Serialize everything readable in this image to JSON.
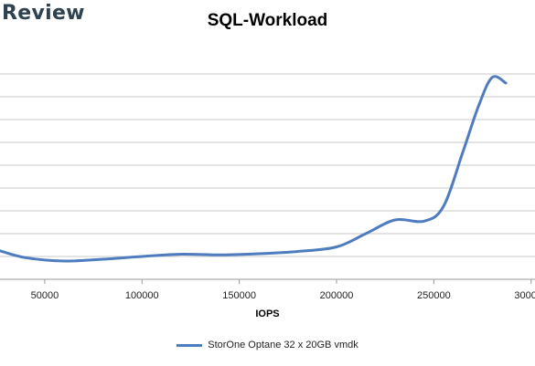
{
  "brand": {
    "text": "Review",
    "color": "#2f4250"
  },
  "colors": {
    "series": "#4f7cbf",
    "grid": "#c8c8c8",
    "axis": "#9a9a9a"
  },
  "chart_data": {
    "type": "line",
    "title": "SQL-Workload",
    "xlabel": "IOPS",
    "ylabel": "",
    "xlim": [
      27000,
      302000
    ],
    "ylim": [
      0,
      10
    ],
    "xticks": [
      {
        "value": 50000,
        "label": "50000"
      },
      {
        "value": 100000,
        "label": "100000"
      },
      {
        "value": 150000,
        "label": "150000"
      },
      {
        "value": 200000,
        "label": "200000"
      },
      {
        "value": 250000,
        "label": "250000"
      },
      {
        "value": 300000,
        "label": "300000"
      }
    ],
    "yticks": [
      0,
      1,
      2,
      3,
      4,
      5,
      6,
      7,
      8,
      9
    ],
    "grid": true,
    "legend": "bottom",
    "series": [
      {
        "name": "StorOne Optane 32 x 20GB vmdk",
        "x": [
          27000,
          40000,
          60000,
          80000,
          100000,
          120000,
          140000,
          160000,
          180000,
          200000,
          215000,
          230000,
          245000,
          255000,
          265000,
          273000,
          280000,
          287000
        ],
        "y": [
          1.25,
          0.95,
          0.8,
          0.88,
          1.0,
          1.1,
          1.07,
          1.12,
          1.22,
          1.42,
          2.0,
          2.6,
          2.55,
          3.2,
          5.6,
          7.6,
          8.85,
          8.6
        ]
      }
    ]
  }
}
